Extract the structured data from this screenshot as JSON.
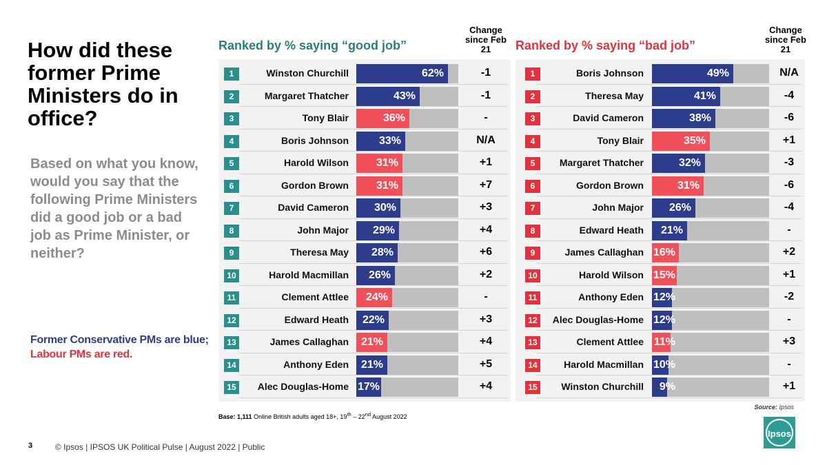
{
  "title": "How did these former Prime Ministers do in office?",
  "question": "Based on what you know, would you say that the following Prime Ministers did a good job or a bad job as Prime Minister, or neither?",
  "note": {
    "blue": "Former Conservative PMs are blue;",
    "red": "Labour PMs are red."
  },
  "colors": {
    "conservative": "#2e3c8c",
    "labour": "#f0505a",
    "good_rank": "#2a8f8a",
    "bad_rank": "#e0333f",
    "track": "#bfbfbf"
  },
  "change_header": "Change since Feb 21",
  "chart_data": [
    {
      "type": "bar",
      "title": "Ranked by % saying “good job”",
      "ylim": [
        0,
        100
      ],
      "categories": [
        "Winston Churchill",
        "Margaret Thatcher",
        "Tony Blair",
        "Boris Johnson",
        "Harold Wilson",
        "Gordon Brown",
        "David Cameron",
        "John Major",
        "Theresa May",
        "Harold Macmillan",
        "Clement Attlee",
        "Edward Heath",
        "James Callaghan",
        "Anthony Eden",
        "Alec Douglas-Home"
      ],
      "values": [
        62,
        43,
        36,
        33,
        31,
        31,
        30,
        29,
        28,
        26,
        24,
        22,
        21,
        21,
        17
      ],
      "labels": [
        "62%",
        "43%",
        "36%",
        "33%",
        "31%",
        "31%",
        "30%",
        "29%",
        "28%",
        "26%",
        "24%",
        "22%",
        "21%",
        "21%",
        "17%"
      ],
      "party": [
        "con",
        "con",
        "lab",
        "con",
        "lab",
        "lab",
        "con",
        "con",
        "con",
        "con",
        "lab",
        "con",
        "lab",
        "con",
        "con"
      ],
      "change": [
        "-1",
        "-1",
        "-",
        "N/A",
        "+1",
        "+7",
        "+3",
        "+4",
        "+6",
        "+2",
        "-",
        "+3",
        "+4",
        "+5",
        "+4"
      ]
    },
    {
      "type": "bar",
      "title": "Ranked by % saying “bad job”",
      "ylim": [
        0,
        100
      ],
      "categories": [
        "Boris Johnson",
        "Theresa May",
        "David Cameron",
        "Tony Blair",
        "Margaret Thatcher",
        "Gordon Brown",
        "John Major",
        "Edward Heath",
        "James Callaghan",
        "Harold Wilson",
        "Anthony Eden",
        "Alec Douglas-Home",
        "Clement Attlee",
        "Harold Macmillan",
        "Winston Churchill"
      ],
      "values": [
        49,
        41,
        38,
        35,
        32,
        31,
        26,
        21,
        16,
        15,
        12,
        12,
        11,
        10,
        9
      ],
      "labels": [
        "49%",
        "41%",
        "38%",
        "35%",
        "32%",
        "31%",
        "26%",
        "21%",
        "16%",
        "15%",
        "12%",
        "12%",
        "11%",
        "10%",
        "9%"
      ],
      "party": [
        "con",
        "con",
        "con",
        "lab",
        "con",
        "lab",
        "con",
        "con",
        "lab",
        "lab",
        "con",
        "con",
        "lab",
        "con",
        "con"
      ],
      "change": [
        "N/A",
        "-4",
        "-6",
        "+1",
        "-3",
        "-6",
        "-4",
        "-",
        "+2",
        "+1",
        "-2",
        "-",
        "+3",
        "-",
        "+1"
      ]
    }
  ],
  "base": {
    "label": "Base:",
    "count": "1,111",
    "text": "Online British adults aged 18+, 19",
    "sup1": "th",
    "mid": " – 22",
    "sup2": "nd",
    "end": " August 2022"
  },
  "source": {
    "label": "Source:",
    "name": "Ipsos"
  },
  "logo_text": "Ipsos",
  "footer": {
    "page": "3",
    "text": "© Ipsos  |  IPSOS UK Political Pulse | August 2022 | Public"
  }
}
